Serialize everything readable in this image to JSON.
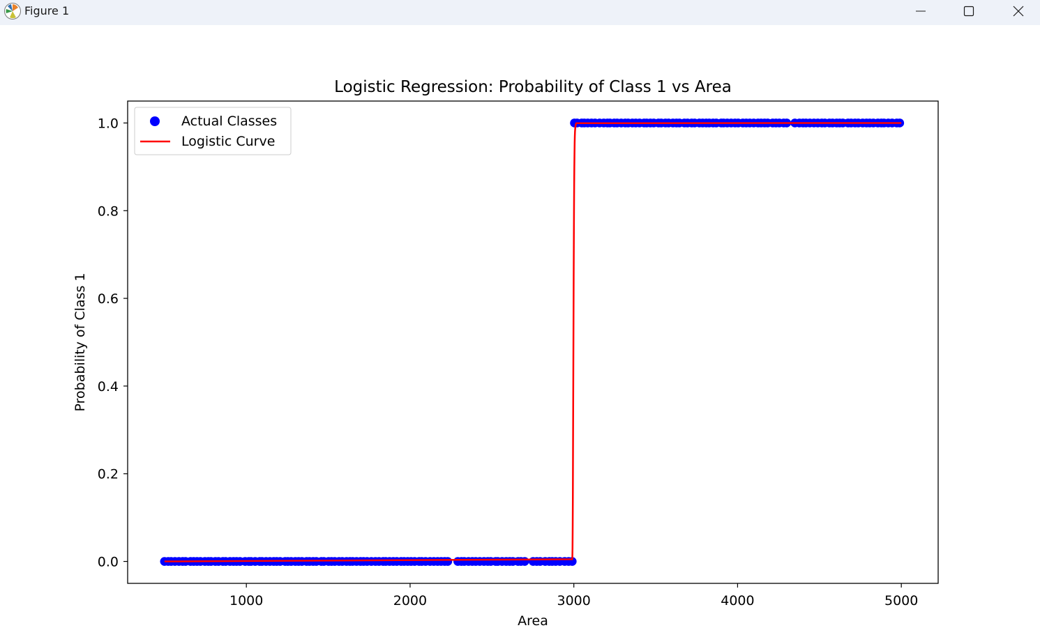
{
  "window": {
    "title": "Figure 1",
    "icon": "matplotlib-icon",
    "controls": [
      "minimize-icon",
      "maximize-icon",
      "close-icon"
    ]
  },
  "chart_data": {
    "type": "scatter",
    "title": "Logistic Regression: Probability of Class 1 vs Area",
    "xlabel": "Area",
    "ylabel": "Probability of Class 1",
    "xlim": [
      275,
      5225
    ],
    "ylim": [
      -0.05,
      1.05
    ],
    "xticks": [
      1000,
      2000,
      3000,
      4000,
      5000
    ],
    "yticks": [
      0.0,
      0.2,
      0.4,
      0.6,
      0.8,
      1.0
    ],
    "xtick_labels": [
      "1000",
      "2000",
      "3000",
      "4000",
      "5000"
    ],
    "ytick_labels": [
      "0.0",
      "0.2",
      "0.4",
      "0.6",
      "0.8",
      "1.0"
    ],
    "grid": false,
    "legend_position": "upper-left",
    "series": [
      {
        "name": "Actual Classes",
        "kind": "scatter",
        "color": "#0000ff",
        "points": [
          {
            "range": [
              500,
              2230
            ],
            "y": 0
          },
          {
            "range": [
              2290,
              2700
            ],
            "y": 0
          },
          {
            "range": [
              2750,
              2990
            ],
            "y": 0
          },
          {
            "range": [
              3000,
              4300
            ],
            "y": 1
          },
          {
            "range": [
              4350,
              4990
            ],
            "y": 1
          }
        ]
      },
      {
        "name": "Logistic Curve",
        "kind": "line",
        "color": "#ff0000",
        "x": [
          500,
          2990,
          2991,
          2992,
          2993,
          2994,
          2995,
          2996,
          2997,
          2998,
          2999,
          3000,
          3001,
          3002,
          3003,
          3004,
          3005,
          3006,
          3007,
          3008,
          3009,
          3010,
          3011,
          3012,
          3013,
          3014,
          3015,
          5000
        ],
        "y": [
          0,
          0.005,
          0.01,
          0.03,
          0.08,
          0.15,
          0.25,
          0.35,
          0.45,
          0.55,
          0.65,
          0.73,
          0.8,
          0.86,
          0.9,
          0.93,
          0.955,
          0.97,
          0.98,
          0.985,
          0.99,
          0.993,
          0.995,
          0.997,
          0.998,
          0.999,
          0.9995,
          1
        ]
      }
    ]
  }
}
